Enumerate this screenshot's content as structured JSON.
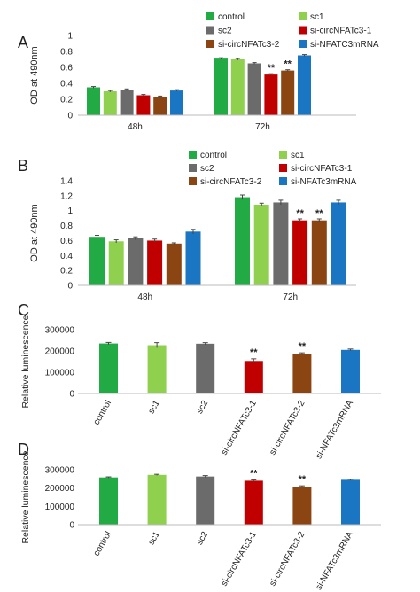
{
  "colors": {
    "control": "#22aa44",
    "sc1": "#8fd14f",
    "sc2": "#6b6b6b",
    "si1": "#c00000",
    "si2": "#8b4513",
    "siNF": "#1a75c2"
  },
  "chart_data": [
    {
      "panel": "A",
      "type": "bar",
      "ylabel": "OD at 490nm",
      "ylim": [
        0,
        1
      ],
      "yticks": [
        "0",
        "0.2",
        "0.4",
        "0.6",
        "0.8",
        "1"
      ],
      "categories": [
        "48h",
        "72h"
      ],
      "legend": "top",
      "series": [
        {
          "name": "control",
          "values": [
            0.35,
            0.71
          ],
          "errors": [
            0.01,
            0.01
          ],
          "sig": [
            "",
            ""
          ]
        },
        {
          "name": "sc1",
          "values": [
            0.3,
            0.7
          ],
          "errors": [
            0.01,
            0.01
          ],
          "sig": [
            "",
            ""
          ]
        },
        {
          "name": "sc2",
          "values": [
            0.32,
            0.65
          ],
          "errors": [
            0.01,
            0.01
          ],
          "sig": [
            "",
            ""
          ]
        },
        {
          "name": "si-circNFATc3-1",
          "values": [
            0.25,
            0.51
          ],
          "errors": [
            0.01,
            0.01
          ],
          "sig": [
            "",
            "**"
          ]
        },
        {
          "name": "si-circNFATc3-2",
          "values": [
            0.23,
            0.56
          ],
          "errors": [
            0.01,
            0.01
          ],
          "sig": [
            "",
            "**"
          ]
        },
        {
          "name": "si-NFATC3mRNA",
          "values": [
            0.31,
            0.75
          ],
          "errors": [
            0.01,
            0.01
          ],
          "sig": [
            "",
            ""
          ]
        }
      ]
    },
    {
      "panel": "B",
      "type": "bar",
      "ylabel": "OD at 490nm",
      "ylim": [
        0,
        1.4
      ],
      "yticks": [
        "0",
        "0.2",
        "0.4",
        "0.6",
        "0.8",
        "1",
        "1.2",
        "1.4"
      ],
      "categories": [
        "48h",
        "72h"
      ],
      "legend": "top",
      "series": [
        {
          "name": "control",
          "values": [
            0.65,
            1.18
          ],
          "errors": [
            0.02,
            0.03
          ],
          "sig": [
            "",
            ""
          ]
        },
        {
          "name": "sc1",
          "values": [
            0.59,
            1.08
          ],
          "errors": [
            0.02,
            0.02
          ],
          "sig": [
            "",
            ""
          ]
        },
        {
          "name": "sc2",
          "values": [
            0.63,
            1.11
          ],
          "errors": [
            0.02,
            0.03
          ],
          "sig": [
            "",
            ""
          ]
        },
        {
          "name": "si-circNFATc3-1",
          "values": [
            0.6,
            0.87
          ],
          "errors": [
            0.02,
            0.02
          ],
          "sig": [
            "",
            "**"
          ]
        },
        {
          "name": "si-circNFATc3-2",
          "values": [
            0.56,
            0.87
          ],
          "errors": [
            0.01,
            0.02
          ],
          "sig": [
            "",
            "**"
          ]
        },
        {
          "name": "si-NFATc3mRNA",
          "values": [
            0.72,
            1.11
          ],
          "errors": [
            0.03,
            0.03
          ],
          "sig": [
            "",
            ""
          ]
        }
      ]
    },
    {
      "panel": "C",
      "type": "bar",
      "ylabel": "Relative luminescence",
      "ylim": [
        0,
        300000
      ],
      "yticks": [
        "0",
        "100000",
        "200000",
        "300000"
      ],
      "categories": [
        "control",
        "sc1",
        "sc2",
        "si-circNFATc3-1",
        "si-circNFATc3-2",
        "si-NFATc3mRNA"
      ],
      "values": [
        235000,
        227000,
        234000,
        153000,
        187000,
        205000
      ],
      "errors": [
        5000,
        12000,
        5000,
        10000,
        4000,
        4000
      ],
      "sig": [
        "",
        "",
        "",
        "**",
        "**",
        ""
      ]
    },
    {
      "panel": "D",
      "type": "bar",
      "ylabel": "Relative luminescence",
      "ylim": [
        0,
        300000
      ],
      "yticks": [
        "0",
        "100000",
        "200000",
        "300000"
      ],
      "categories": [
        "control",
        "sc1",
        "sc2",
        "si-circNFATc3-1",
        "si-circNFATc3-2",
        "si-NFATc3mRNA"
      ],
      "values": [
        258000,
        272000,
        263000,
        240000,
        208000,
        245000
      ],
      "errors": [
        3000,
        3000,
        5000,
        4000,
        4000,
        3000
      ],
      "sig": [
        "",
        "",
        "",
        "**",
        "**",
        ""
      ]
    }
  ]
}
